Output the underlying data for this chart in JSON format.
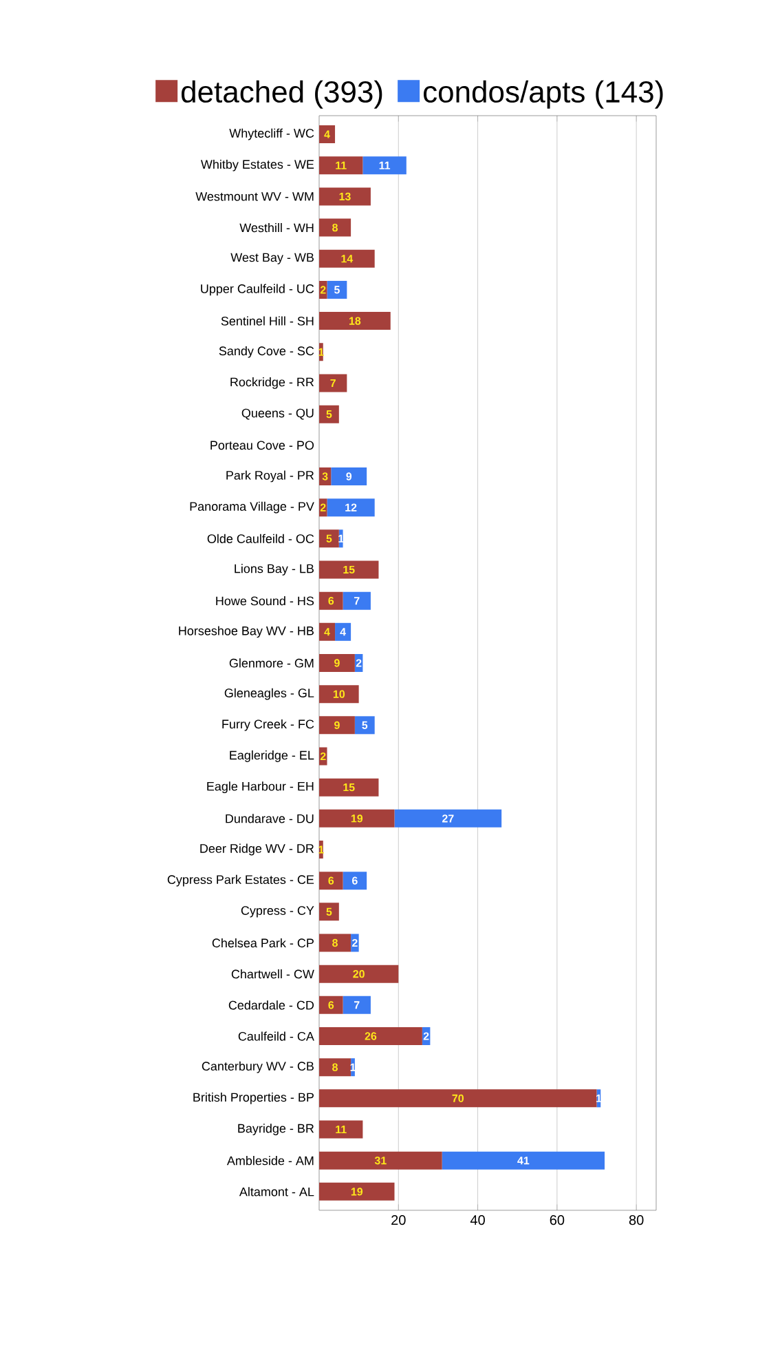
{
  "chart_data": {
    "type": "bar",
    "orientation": "horizontal",
    "stacked": true,
    "categories": [
      "Whytecliff - WC",
      "Whitby Estates - WE",
      "Westmount WV - WM",
      "Westhill - WH",
      "West Bay - WB",
      "Upper Caulfeild - UC",
      "Sentinel Hill - SH",
      "Sandy Cove - SC",
      "Rockridge - RR",
      "Queens - QU",
      "Porteau Cove - PO",
      "Park Royal - PR",
      "Panorama Village - PV",
      "Olde Caulfeild - OC",
      "Lions Bay - LB",
      "Howe Sound - HS",
      "Horseshoe Bay WV - HB",
      "Glenmore - GM",
      "Gleneagles - GL",
      "Furry Creek - FC",
      "Eagleridge - EL",
      "Eagle Harbour - EH",
      "Dundarave - DU",
      "Deer Ridge WV - DR",
      "Cypress Park Estates - CE",
      "Cypress - CY",
      "Chelsea Park - CP",
      "Chartwell - CW",
      "Cedardale - CD",
      "Caulfeild - CA",
      "Canterbury WV - CB",
      "British Properties - BP",
      "Bayridge - BR",
      "Ambleside - AM",
      "Altamont - AL"
    ],
    "series": [
      {
        "name": "detached (393)",
        "color": "#a5403b",
        "values": [
          4,
          11,
          13,
          8,
          14,
          2,
          18,
          1,
          7,
          5,
          0,
          3,
          2,
          5,
          15,
          6,
          4,
          9,
          10,
          9,
          2,
          15,
          19,
          1,
          6,
          5,
          8,
          20,
          6,
          26,
          8,
          70,
          11,
          31,
          19
        ],
        "value_labels": [
          "4",
          "11",
          "13",
          "8",
          "14",
          "2",
          "18",
          "1",
          "7",
          "5",
          null,
          "3",
          "2",
          "5",
          "15",
          "6",
          "4",
          "9",
          "10",
          "9",
          "2",
          "15",
          "19",
          "1",
          "6",
          "5",
          "8",
          "20",
          "6",
          "26",
          "8",
          "70",
          "11",
          "31",
          "19"
        ]
      },
      {
        "name": "condos/apts (143)",
        "color": "#3b7bf2",
        "values": [
          0,
          11,
          0,
          0,
          0,
          5,
          0,
          0,
          0,
          0,
          0,
          9,
          12,
          1,
          0,
          7,
          4,
          2,
          0,
          5,
          0,
          0,
          27,
          0,
          6,
          0,
          2,
          0,
          7,
          2,
          1,
          1,
          0,
          41,
          0
        ],
        "value_labels": [
          null,
          "11",
          null,
          null,
          null,
          "5",
          null,
          null,
          null,
          null,
          null,
          "9",
          "12",
          "1",
          null,
          "7",
          "4",
          "2",
          null,
          "5",
          null,
          null,
          "27",
          null,
          "6",
          null,
          "2",
          null,
          "7",
          "2",
          "1",
          "1",
          null,
          "41",
          null
        ]
      }
    ],
    "xlim": [
      0,
      85
    ],
    "xticks": [
      20,
      40,
      60,
      80
    ],
    "grid": "x",
    "legend": "top"
  }
}
